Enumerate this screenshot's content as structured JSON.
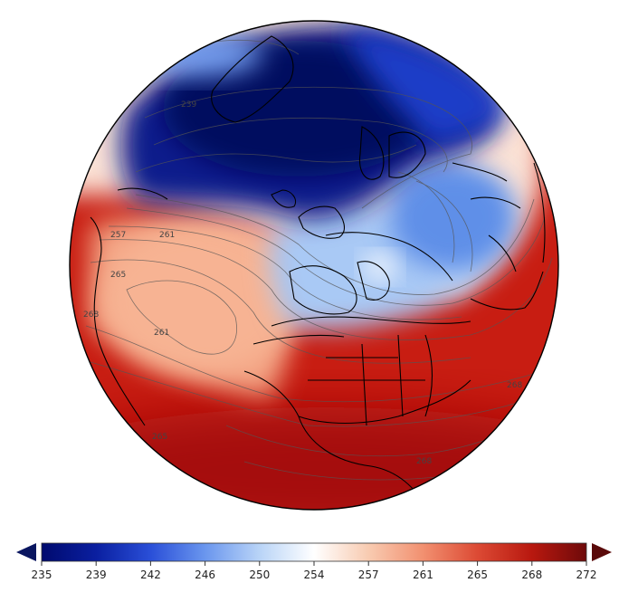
{
  "map": {
    "projection": "orthographic",
    "variable_colors": {
      "cold": "#000a6e",
      "mid": "#ffffff",
      "warm": "#b30f0f"
    },
    "regions": {
      "polar_vortex": "#0a1a8c",
      "iceland_blue": "#1f3fd0",
      "europe_light": "#9cc3f5",
      "atlantic_warm": "#f7a584",
      "africa_red": "#cc2414",
      "sahara_dark": "#a80e0e"
    },
    "contour_labels": [
      "239",
      "257",
      "261",
      "265",
      "261",
      "268",
      "268",
      "265",
      "268"
    ]
  },
  "colorbar": {
    "ticks": [
      "235",
      "239",
      "242",
      "246",
      "250",
      "254",
      "257",
      "261",
      "265",
      "268",
      "272"
    ],
    "extend": "both",
    "stops": [
      "#000a6e",
      "#0a1fa0",
      "#2a4fd8",
      "#6a96ee",
      "#b9d4f7",
      "#ffffff",
      "#f8cbb1",
      "#f29070",
      "#dc4a34",
      "#b8180f",
      "#6e0a0a"
    ]
  }
}
